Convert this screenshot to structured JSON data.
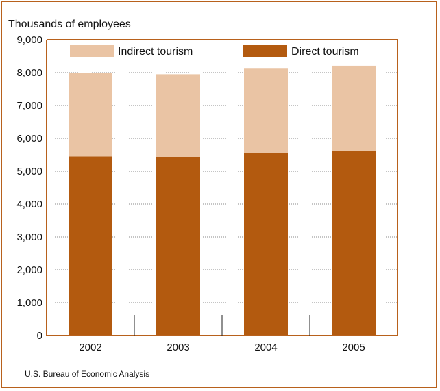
{
  "chart_data": {
    "type": "bar",
    "stacked": true,
    "ylabel": "Thousands of employees",
    "ylim": [
      0,
      9000
    ],
    "yticks": [
      0,
      1000,
      2000,
      3000,
      4000,
      5000,
      6000,
      7000,
      8000,
      9000
    ],
    "ytick_labels": [
      "0",
      "1,000",
      "2,000",
      "3,000",
      "4,000",
      "5,000",
      "6,000",
      "7,000",
      "8,000",
      "9,000"
    ],
    "categories": [
      "2002",
      "2003",
      "2004",
      "2005"
    ],
    "series": [
      {
        "name": "Direct tourism",
        "values": [
          5450,
          5430,
          5560,
          5620
        ],
        "color": "#b35a0f"
      },
      {
        "name": "Indirect tourism",
        "values": [
          2530,
          2520,
          2560,
          2590
        ],
        "color": "#eac4a4"
      }
    ],
    "grid": "horizontal dotted",
    "legend": "top",
    "source": "U.S. Bureau of Economic Analysis"
  },
  "colors": {
    "frame": "#b8611c",
    "axis": "#b8611c",
    "grid": "#888888"
  }
}
